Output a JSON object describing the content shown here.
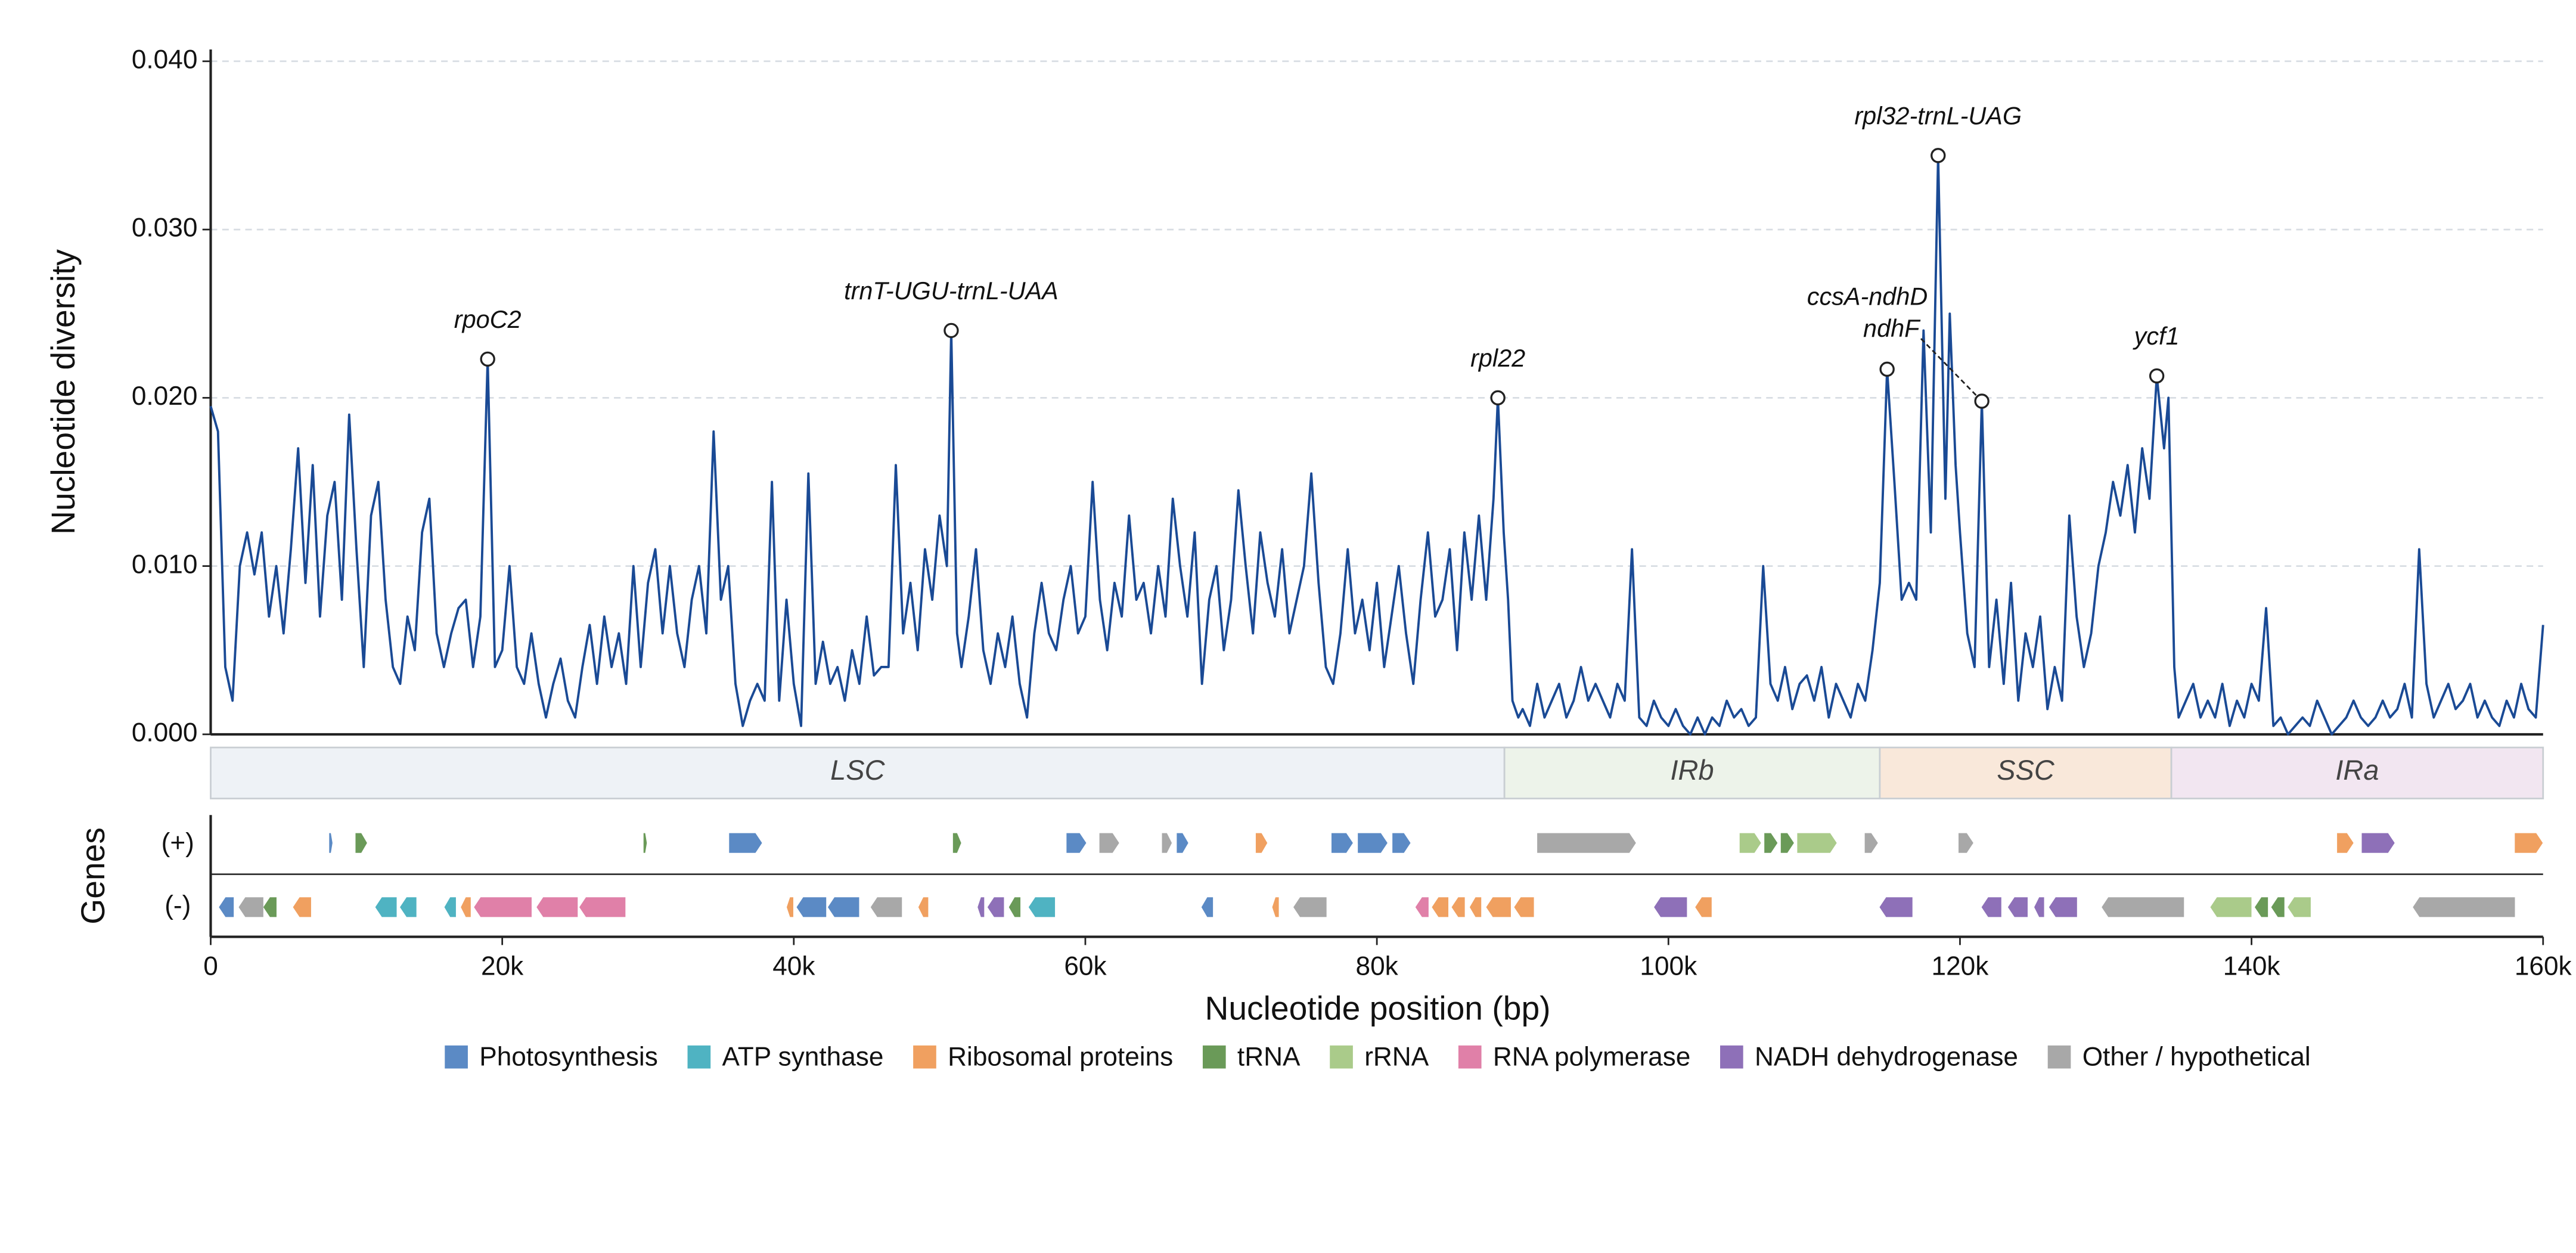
{
  "chart_data": {
    "type": "line",
    "ylabel": "Nucleotide diversity",
    "xlabel": "Nucleotide position (bp)",
    "genes_label": "Genes",
    "track_labels": [
      "(+)",
      "(-)"
    ],
    "color": "#1a4a95",
    "xlim": [
      0,
      160000
    ],
    "ylim": [
      0,
      0.0407
    ],
    "xticks": [
      0,
      {
        "value": 20000,
        "label": "20k"
      },
      {
        "value": 40000,
        "label": "40k"
      },
      {
        "value": 60000,
        "label": "60k"
      },
      {
        "value": 80000,
        "label": "80k"
      },
      {
        "value": 100000,
        "label": "100k"
      },
      {
        "value": 120000,
        "label": "120k"
      },
      {
        "value": 140000,
        "label": "140k"
      },
      {
        "value": 160000,
        "label": "160k"
      }
    ],
    "yticks": [
      {
        "value": 0,
        "label": "0.000"
      },
      {
        "value": 0.01,
        "label": "0.010"
      },
      {
        "value": 0.02,
        "label": "0.020"
      },
      {
        "value": 0.03,
        "label": "0.030"
      },
      {
        "value": 0.04,
        "label": "0.040"
      }
    ],
    "grid": true,
    "x": [
      0,
      500,
      1000,
      1500,
      2000,
      2500,
      3000,
      3500,
      4000,
      4500,
      5000,
      5500,
      6000,
      6500,
      7000,
      7500,
      8000,
      8500,
      9000,
      9500,
      10000,
      10500,
      11000,
      11500,
      12000,
      12500,
      13000,
      13500,
      14000,
      14500,
      15000,
      15500,
      16000,
      16500,
      17000,
      17500,
      18000,
      18500,
      19000,
      19500,
      20000,
      20500,
      21000,
      21500,
      22000,
      22500,
      23000,
      23500,
      24000,
      24500,
      25000,
      25500,
      26000,
      26500,
      27000,
      27500,
      28000,
      28500,
      29000,
      29500,
      30000,
      30500,
      31000,
      31500,
      32000,
      32500,
      33000,
      33500,
      34000,
      34500,
      35000,
      35500,
      36000,
      36500,
      37000,
      37500,
      38000,
      38500,
      39000,
      39500,
      40000,
      40500,
      41000,
      41500,
      42000,
      42500,
      43000,
      43500,
      44000,
      44500,
      45000,
      45500,
      46000,
      46500,
      47000,
      47500,
      48000,
      48500,
      49000,
      49500,
      50000,
      50500,
      50800,
      51200,
      51500,
      52000,
      52500,
      53000,
      53500,
      54000,
      54500,
      55000,
      55500,
      56000,
      56500,
      57000,
      57500,
      58000,
      58500,
      59000,
      59500,
      60000,
      60500,
      61000,
      61500,
      62000,
      62500,
      63000,
      63500,
      64000,
      64500,
      65000,
      65500,
      66000,
      66500,
      67000,
      67500,
      68000,
      68500,
      69000,
      69500,
      70000,
      70500,
      71000,
      71500,
      72000,
      72500,
      73000,
      73500,
      74000,
      74500,
      75000,
      75500,
      76000,
      76500,
      77000,
      77500,
      78000,
      78500,
      79000,
      79500,
      80000,
      80500,
      81000,
      81500,
      82000,
      82500,
      83000,
      83500,
      84000,
      84500,
      85000,
      85500,
      86000,
      86500,
      87000,
      87500,
      88000,
      88300,
      88700,
      89000,
      89300,
      89700,
      90000,
      90500,
      91000,
      91500,
      92000,
      92500,
      93000,
      93500,
      94000,
      94500,
      95000,
      95500,
      96000,
      96500,
      97000,
      97500,
      98000,
      98500,
      99000,
      99500,
      100000,
      100500,
      101000,
      101500,
      102000,
      102500,
      103000,
      103500,
      104000,
      104500,
      105000,
      105500,
      106000,
      106500,
      107000,
      107500,
      108000,
      108500,
      109000,
      109500,
      110000,
      110500,
      111000,
      111500,
      112000,
      112500,
      113000,
      113500,
      114000,
      114500,
      115000,
      115500,
      116000,
      116500,
      117000,
      117500,
      118000,
      118500,
      119000,
      119300,
      119700,
      120000,
      120500,
      121000,
      121500,
      122000,
      122500,
      123000,
      123500,
      124000,
      124500,
      125000,
      125500,
      126000,
      126500,
      127000,
      127500,
      128000,
      128500,
      129000,
      129500,
      130000,
      130500,
      131000,
      131500,
      132000,
      132500,
      133000,
      133500,
      134000,
      134300,
      134700,
      135000,
      135500,
      136000,
      136500,
      137000,
      137500,
      138000,
      138500,
      139000,
      139500,
      140000,
      140500,
      141000,
      141500,
      142000,
      142500,
      143000,
      143500,
      144000,
      144500,
      145000,
      145500,
      146000,
      146500,
      147000,
      147500,
      148000,
      148500,
      149000,
      149500,
      150000,
      150500,
      151000,
      151500,
      152000,
      152500,
      153000,
      153500,
      154000,
      154500,
      155000,
      155500,
      156000,
      156500,
      157000,
      157500,
      158000,
      158500,
      159000,
      159500,
      160000
    ],
    "values": [
      0.0195,
      0.018,
      0.004,
      0.002,
      0.01,
      0.012,
      0.0095,
      0.012,
      0.007,
      0.01,
      0.006,
      0.011,
      0.017,
      0.009,
      0.016,
      0.007,
      0.013,
      0.015,
      0.008,
      0.019,
      0.011,
      0.004,
      0.013,
      0.015,
      0.008,
      0.004,
      0.003,
      0.007,
      0.005,
      0.012,
      0.014,
      0.006,
      0.004,
      0.006,
      0.0075,
      0.008,
      0.004,
      0.007,
      0.0223,
      0.004,
      0.005,
      0.01,
      0.004,
      0.003,
      0.006,
      0.003,
      0.001,
      0.003,
      0.0045,
      0.002,
      0.001,
      0.004,
      0.0065,
      0.003,
      0.007,
      0.004,
      0.006,
      0.003,
      0.01,
      0.004,
      0.009,
      0.011,
      0.006,
      0.01,
      0.006,
      0.004,
      0.008,
      0.01,
      0.006,
      0.018,
      0.008,
      0.01,
      0.003,
      0.0005,
      0.002,
      0.003,
      0.002,
      0.015,
      0.002,
      0.008,
      0.003,
      0.0005,
      0.0155,
      0.003,
      0.0055,
      0.003,
      0.004,
      0.002,
      0.005,
      0.003,
      0.007,
      0.0035,
      0.004,
      0.004,
      0.016,
      0.006,
      0.009,
      0.005,
      0.011,
      0.008,
      0.013,
      0.01,
      0.024,
      0.006,
      0.004,
      0.007,
      0.011,
      0.005,
      0.003,
      0.006,
      0.004,
      0.007,
      0.003,
      0.001,
      0.006,
      0.009,
      0.006,
      0.005,
      0.008,
      0.01,
      0.006,
      0.007,
      0.015,
      0.008,
      0.005,
      0.009,
      0.007,
      0.013,
      0.008,
      0.009,
      0.006,
      0.01,
      0.007,
      0.014,
      0.01,
      0.007,
      0.012,
      0.003,
      0.008,
      0.01,
      0.005,
      0.008,
      0.0145,
      0.01,
      0.006,
      0.012,
      0.009,
      0.007,
      0.011,
      0.006,
      0.008,
      0.01,
      0.0155,
      0.009,
      0.004,
      0.003,
      0.006,
      0.011,
      0.006,
      0.008,
      0.005,
      0.009,
      0.004,
      0.007,
      0.01,
      0.006,
      0.003,
      0.008,
      0.012,
      0.007,
      0.008,
      0.011,
      0.005,
      0.012,
      0.008,
      0.013,
      0.008,
      0.014,
      0.02,
      0.012,
      0.008,
      0.002,
      0.001,
      0.0015,
      0.0005,
      0.003,
      0.001,
      0.002,
      0.003,
      0.001,
      0.002,
      0.004,
      0.002,
      0.003,
      0.002,
      0.001,
      0.003,
      0.002,
      0.011,
      0.001,
      0.0005,
      0.002,
      0.001,
      0.0005,
      0.0015,
      0.0005,
      0,
      0.001,
      0,
      0.001,
      0.0005,
      0.002,
      0.001,
      0.0015,
      0.0005,
      0.001,
      0.01,
      0.003,
      0.002,
      0.004,
      0.0015,
      0.003,
      0.0035,
      0.002,
      0.004,
      0.001,
      0.003,
      0.002,
      0.001,
      0.003,
      0.002,
      0.005,
      0.009,
      0.0217,
      0.015,
      0.008,
      0.009,
      0.008,
      0.024,
      0.012,
      0.0344,
      0.014,
      0.025,
      0.016,
      0.012,
      0.006,
      0.004,
      0.0198,
      0.004,
      0.008,
      0.003,
      0.009,
      0.002,
      0.006,
      0.004,
      0.007,
      0.0015,
      0.004,
      0.002,
      0.013,
      0.007,
      0.004,
      0.006,
      0.01,
      0.012,
      0.015,
      0.013,
      0.016,
      0.012,
      0.017,
      0.014,
      0.0213,
      0.017,
      0.02,
      0.004,
      0.001,
      0.002,
      0.003,
      0.001,
      0.002,
      0.001,
      0.003,
      0.0005,
      0.002,
      0.001,
      0.003,
      0.002,
      0.0075,
      0.0005,
      0.001,
      0,
      0.0005,
      0.001,
      0.0005,
      0.002,
      0.001,
      0,
      0.0005,
      0.001,
      0.002,
      0.001,
      0.0005,
      0.001,
      0.002,
      0.001,
      0.0015,
      0.003,
      0.001,
      0.011,
      0.003,
      0.001,
      0.002,
      0.003,
      0.0015,
      0.002,
      0.003,
      0.001,
      0.002,
      0.001,
      0.0005,
      0.002,
      0.001,
      0.003,
      0.0015,
      0.001,
      0.0065
    ],
    "annotations": [
      {
        "label": "rpoC2",
        "x": 19000,
        "y": 0.0223
      },
      {
        "label": "trnT-UGU-trnL-UAA",
        "x": 50800,
        "y": 0.024
      },
      {
        "label": "rpl22",
        "x": 88300,
        "y": 0.02
      },
      {
        "label": "ccsA-ndhD",
        "x": 115000,
        "y": 0.0217
      },
      {
        "label": "rpl32-trnL-UAG",
        "x": 118500,
        "y": 0.0344
      },
      {
        "label": "ndhF",
        "x": 121500,
        "y": 0.0198
      },
      {
        "label": "ycf1",
        "x": 133500,
        "y": 0.0213
      }
    ],
    "regions": [
      {
        "name": "LSC",
        "start": 0,
        "end": 88750,
        "color": "#eef2f6"
      },
      {
        "name": "IRb",
        "start": 88750,
        "end": 114500,
        "color": "#edf3ea"
      },
      {
        "name": "SSC",
        "start": 114500,
        "end": 134500,
        "color": "#f9e8da"
      },
      {
        "name": "IRa",
        "start": 134500,
        "end": 160000,
        "color": "#f2e6f1"
      }
    ],
    "gene_categories": [
      {
        "name": "Photosynthesis",
        "color": "#5b8ac5"
      },
      {
        "name": "ATP synthase",
        "color": "#4fb3c2"
      },
      {
        "name": "Ribosomal proteins",
        "color": "#f0a060"
      },
      {
        "name": "tRNA",
        "color": "#6a9a58"
      },
      {
        "name": "rRNA",
        "color": "#aacb8a"
      },
      {
        "name": "RNA polymerase",
        "color": "#e080a8"
      },
      {
        "name": "NADH dehydrogenase",
        "color": "#8e70b8"
      },
      {
        "name": "Other / hypothetical",
        "color": "#a8a8a8"
      }
    ],
    "genes_plus": [
      [
        8129,
        8355,
        "Photosynthesis"
      ],
      [
        9935,
        10726,
        "tRNA"
      ],
      [
        29693,
        29919,
        "tRNA"
      ],
      [
        35564,
        37822,
        "Photosynthesis"
      ],
      [
        50918,
        51482,
        "tRNA"
      ],
      [
        58708,
        60063,
        "Photosynthesis"
      ],
      [
        60966,
        62320,
        "Other / hypothetical"
      ],
      [
        65256,
        65933,
        "Other / hypothetical"
      ],
      [
        66272,
        67062,
        "Photosynthesis"
      ],
      [
        71692,
        72482,
        "Ribosomal proteins"
      ],
      [
        76886,
        78354,
        "Photosynthesis"
      ],
      [
        78693,
        80725,
        "Photosynthesis"
      ],
      [
        81064,
        82306,
        "Photosynthesis"
      ],
      [
        90997,
        97771,
        "Other / hypothetical"
      ],
      [
        104884,
        106352,
        "rRNA"
      ],
      [
        106578,
        107481,
        "tRNA"
      ],
      [
        107707,
        108610,
        "tRNA"
      ],
      [
        108836,
        111545,
        "rRNA"
      ],
      [
        113465,
        114368,
        "Other / hypothetical"
      ],
      [
        119900,
        120916,
        "Other / hypothetical"
      ],
      [
        145867,
        146996,
        "Ribosomal proteins"
      ],
      [
        147560,
        149818,
        "NADH dehydrogenase"
      ],
      [
        158060,
        159979,
        "Ribosomal proteins"
      ]
    ],
    "genes_minus": [
      [
        565,
        1581,
        "Photosynthesis"
      ],
      [
        1919,
        3613,
        "Other / hypothetical"
      ],
      [
        3613,
        4516,
        "tRNA"
      ],
      [
        5645,
        6887,
        "Ribosomal proteins"
      ],
      [
        11290,
        12758,
        "ATP synthase"
      ],
      [
        12984,
        14113,
        "ATP synthase"
      ],
      [
        16032,
        16822,
        "ATP synthase"
      ],
      [
        17161,
        17838,
        "Ribosomal proteins"
      ],
      [
        18064,
        22016,
        "RNA polymerase"
      ],
      [
        22355,
        25177,
        "RNA polymerase"
      ],
      [
        25290,
        28451,
        "RNA polymerase"
      ],
      [
        39515,
        39966,
        "Ribosomal proteins"
      ],
      [
        40192,
        42225,
        "Photosynthesis"
      ],
      [
        42338,
        44483,
        "Photosynthesis"
      ],
      [
        45273,
        47418,
        "Other / hypothetical"
      ],
      [
        48547,
        49224,
        "Ribosomal proteins"
      ],
      [
        52611,
        53063,
        "NADH dehydrogenase"
      ],
      [
        53289,
        54418,
        "NADH dehydrogenase"
      ],
      [
        54756,
        55546,
        "tRNA"
      ],
      [
        56111,
        57918,
        "ATP synthase"
      ],
      [
        67966,
        68756,
        "Photosynthesis"
      ],
      [
        72821,
        73272,
        "Ribosomal proteins"
      ],
      [
        74273,
        76546,
        "Other / hypothetical"
      ],
      [
        82643,
        83546,
        "RNA polymerase"
      ],
      [
        83772,
        84902,
        "Ribosomal proteins"
      ],
      [
        85127,
        86030,
        "Ribosomal proteins"
      ],
      [
        86369,
        87159,
        "Ribosomal proteins"
      ],
      [
        87498,
        89191,
        "Ribosomal proteins"
      ],
      [
        89417,
        90771,
        "Ribosomal proteins"
      ],
      [
        99013,
        101271,
        "NADH dehydrogenase"
      ],
      [
        101836,
        102965,
        "Ribosomal proteins"
      ],
      [
        114481,
        116739,
        "NADH dehydrogenase"
      ],
      [
        121480,
        122835,
        "NADH dehydrogenase"
      ],
      [
        123287,
        124641,
        "NADH dehydrogenase"
      ],
      [
        125093,
        125770,
        "NADH dehydrogenase"
      ],
      [
        126109,
        128028,
        "NADH dehydrogenase"
      ],
      [
        129721,
        135366,
        "Other / hypothetical"
      ],
      [
        137174,
        139996,
        "rRNA"
      ],
      [
        140222,
        141126,
        "tRNA"
      ],
      [
        141352,
        142255,
        "tRNA"
      ],
      [
        142481,
        144061,
        "rRNA"
      ],
      [
        151067,
        158067,
        "Other / hypothetical"
      ]
    ]
  }
}
